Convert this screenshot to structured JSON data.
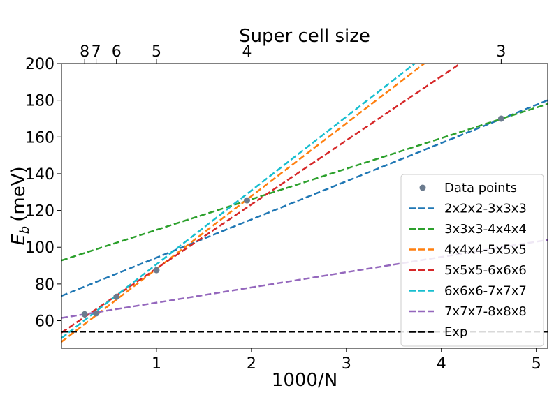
{
  "chart_data": {
    "type": "line",
    "title": "",
    "xlabel": "1000/N",
    "ylabel_main": "E",
    "ylabel_sub": "b",
    "ylabel_unit": "(meV)",
    "secondary_xlabel": "Super cell size",
    "xlim": [
      0,
      5.12
    ],
    "ylim": [
      45,
      200
    ],
    "xticks": [
      {
        "value": 1,
        "label": "1"
      },
      {
        "value": 2,
        "label": "2"
      },
      {
        "value": 3,
        "label": "3"
      },
      {
        "value": 4,
        "label": "4"
      },
      {
        "value": 5,
        "label": "5"
      }
    ],
    "yticks": [
      {
        "value": 60,
        "label": "60"
      },
      {
        "value": 80,
        "label": "80"
      },
      {
        "value": 100,
        "label": "100"
      },
      {
        "value": 120,
        "label": "120"
      },
      {
        "value": 140,
        "label": "140"
      },
      {
        "value": 160,
        "label": "160"
      },
      {
        "value": 180,
        "label": "180"
      },
      {
        "value": 200,
        "label": "200"
      }
    ],
    "top_ticks": [
      {
        "value": 0.244,
        "label": "8"
      },
      {
        "value": 0.365,
        "label": "7"
      },
      {
        "value": 0.579,
        "label": "6"
      },
      {
        "value": 1.0,
        "label": "5"
      },
      {
        "value": 1.953,
        "label": "4"
      },
      {
        "value": 4.63,
        "label": "3"
      }
    ],
    "points": {
      "name": "Data points",
      "color": "#6b7b8e",
      "x": [
        0.244,
        0.365,
        0.579,
        1.0,
        1.953,
        4.63
      ],
      "y": [
        63.5,
        64.0,
        73.0,
        87.5,
        125.5,
        170.0
      ]
    },
    "series": [
      {
        "name": "2x2x2-3x3x3",
        "color": "#1f77b4",
        "x": [
          0,
          5.12
        ],
        "y": [
          73.5,
          180.0
        ]
      },
      {
        "name": "3x3x3-4x4x4",
        "color": "#2ca02c",
        "x": [
          0,
          5.12
        ],
        "y": [
          92.8,
          178.0
        ]
      },
      {
        "name": "4x4x4-5x5x5",
        "color": "#ff7f0e",
        "x": [
          0,
          3.82
        ],
        "y": [
          48.5,
          200.0
        ]
      },
      {
        "name": "5x5x5-6x6x6",
        "color": "#d62728",
        "x": [
          0,
          4.2
        ],
        "y": [
          53.5,
          200.0
        ]
      },
      {
        "name": "6x6x6-7x7x7",
        "color": "#17becf",
        "x": [
          0,
          3.72
        ],
        "y": [
          50.5,
          200.0
        ]
      },
      {
        "name": "7x7x7-8x8x8",
        "color": "#9467bd",
        "x": [
          0,
          5.12
        ],
        "y": [
          61.5,
          104.0
        ]
      },
      {
        "name": "Exp",
        "color": "#000000",
        "x": [
          0,
          5.12
        ],
        "y": [
          54.0,
          54.0
        ]
      }
    ],
    "legend_position": "lower-right"
  }
}
